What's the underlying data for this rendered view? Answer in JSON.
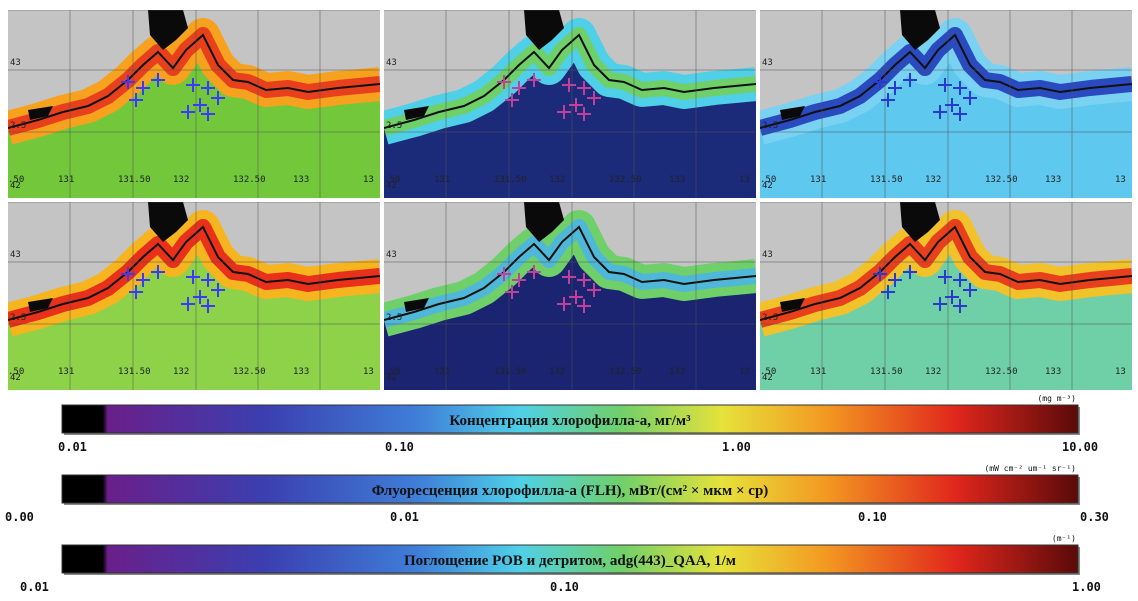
{
  "map_labels": {
    "lat": [
      "43",
      "2.5",
      "42"
    ],
    "lon": [
      ".50",
      "131",
      "131.50",
      "132",
      "132.50",
      "133",
      "13"
    ]
  },
  "colorbars": [
    {
      "title": "Концентрация хлорофилла-а, мг/м³",
      "unit": "(mg m⁻³)",
      "ticks": [
        "0.01",
        "0.10",
        "1.00",
        "10.00"
      ]
    },
    {
      "title": "Флуоресценция хлорофилла-а (FLH),  мВт/(см² × мкм × ср)",
      "unit": "(mW cm⁻² um⁻¹ sr⁻¹)",
      "ticks": [
        "0.00",
        "0.01",
        "0.10",
        "0.30"
      ]
    },
    {
      "title": "Поглощение  РОВ и детритом,  adg(443)_QAA,  1/м",
      "unit": "(m⁻¹)",
      "ticks": [
        "0.01",
        "0.10",
        "1.00"
      ]
    }
  ]
}
